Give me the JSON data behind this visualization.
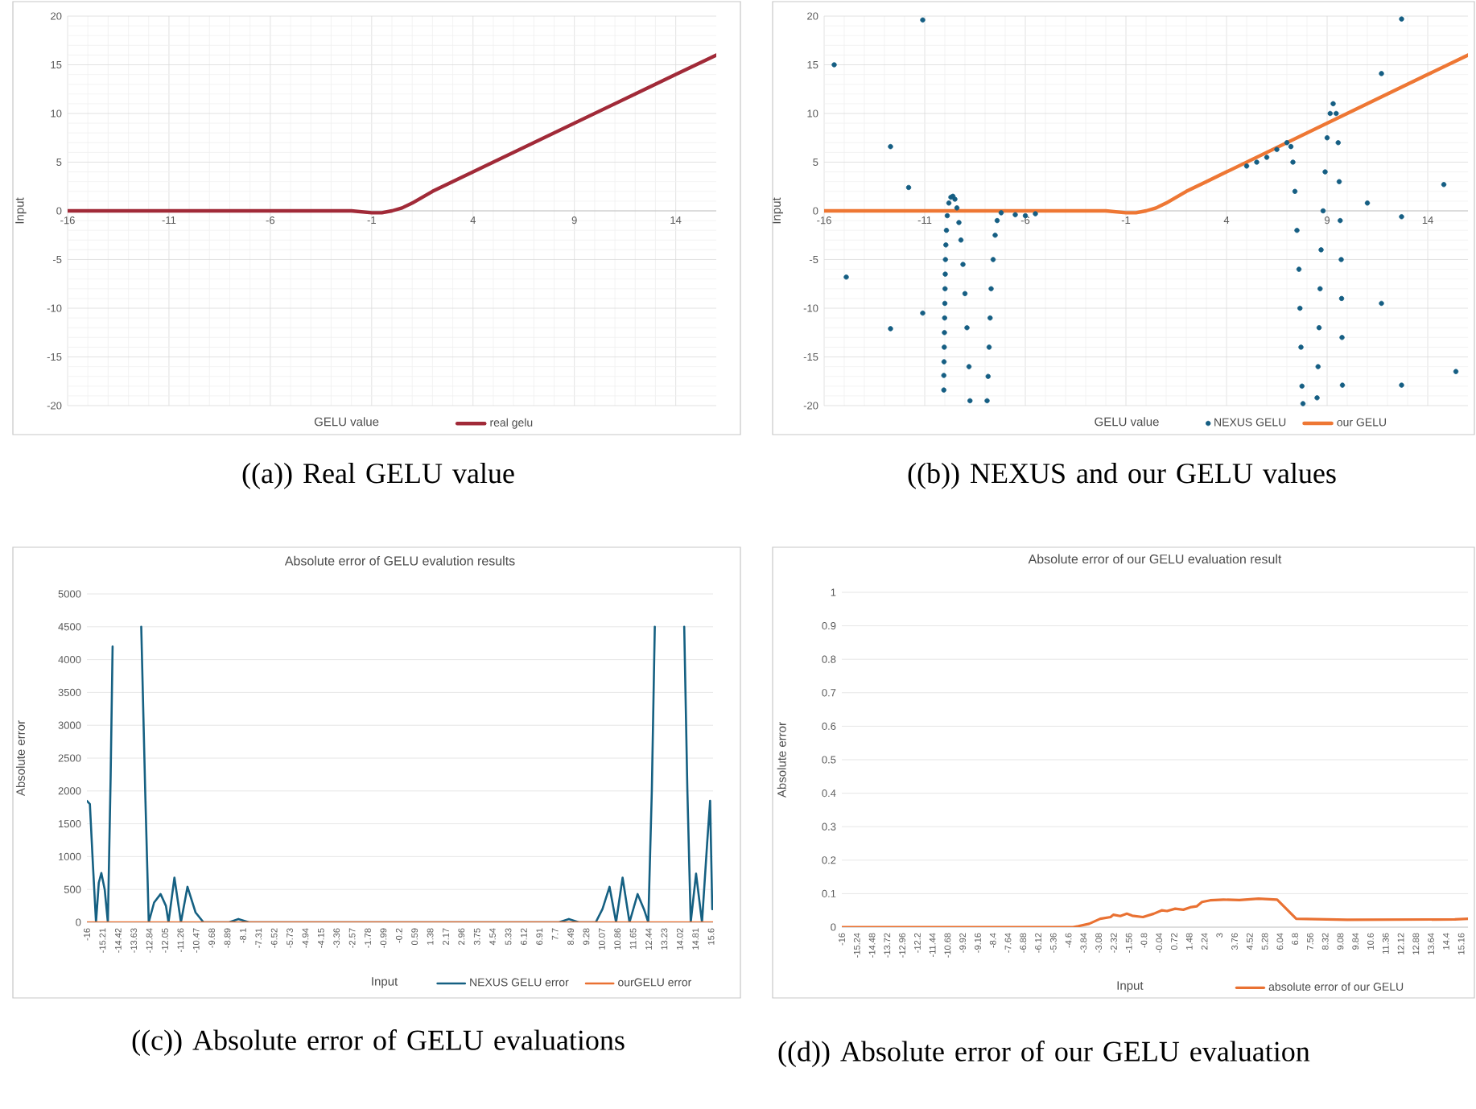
{
  "chart_data": [
    {
      "type": "line",
      "xlabel": "GELU value",
      "ylabel": "Input",
      "annotations": [
        "((a)) Real GELU value"
      ],
      "xlim": [
        -16,
        16
      ],
      "ylim": [
        -20,
        20
      ],
      "xticks": [
        -16,
        -11,
        -6,
        -1,
        4,
        9,
        14
      ],
      "yticks": [
        -20,
        -15,
        -10,
        -5,
        0,
        5,
        10,
        15,
        20
      ],
      "grid": true,
      "legend": "bottom",
      "series": [
        {
          "name": "real gelu",
          "color": "#a12a38",
          "x": [
            -16,
            -12,
            -8,
            -4,
            -2,
            -1,
            -0.5,
            0,
            0.5,
            1,
            1.5,
            2,
            3,
            4,
            6,
            8,
            10,
            12,
            14,
            16
          ],
          "values": [
            0,
            0,
            0,
            0,
            0,
            -0.2,
            -0.2,
            0,
            0.3,
            0.8,
            1.4,
            2,
            3,
            4,
            6,
            8,
            10,
            12,
            14,
            16
          ]
        }
      ]
    },
    {
      "type": "scatter",
      "xlabel": "GELU value",
      "ylabel": "Input",
      "annotations": [
        "((b)) NEXUS and our GELU values"
      ],
      "xlim": [
        -16,
        16
      ],
      "ylim": [
        -20,
        20
      ],
      "xticks": [
        -16,
        -11,
        -6,
        -1,
        4,
        9,
        14
      ],
      "yticks": [
        -20,
        -15,
        -10,
        -5,
        0,
        5,
        10,
        15,
        20
      ],
      "grid": true,
      "legend": "bottom",
      "series": [
        {
          "name": "NEXUS GELU",
          "color": "#155e83",
          "marker": "circle",
          "x": [
            -15.5,
            -14.9,
            -12.7,
            -12.7,
            -11.8,
            -11.1,
            -11.1,
            -10.05,
            -10.05,
            -10.04,
            -10.03,
            -10.02,
            -10.01,
            -10,
            -9.99,
            -9.98,
            -9.97,
            -9.95,
            -9.92,
            -9.88,
            -9.8,
            -9.7,
            -9.6,
            -9.5,
            -9.4,
            -9.3,
            -9.2,
            -9.1,
            -9,
            -8.9,
            -8.8,
            -8.75,
            -7.9,
            -7.85,
            -7.8,
            -7.75,
            -7.7,
            -7.6,
            -7.5,
            -7.4,
            -7.2,
            -6.5,
            -6,
            -5.5,
            5,
            5.5,
            6,
            6.5,
            7,
            7.2,
            7.3,
            7.4,
            7.5,
            7.6,
            7.65,
            7.7,
            7.75,
            7.8,
            8.5,
            8.55,
            8.6,
            8.65,
            8.7,
            8.8,
            8.9,
            9,
            9.15,
            9.3,
            9.45,
            9.55,
            9.6,
            9.65,
            9.7,
            9.72,
            9.74,
            9.76,
            11,
            11.7,
            11.7,
            12.7,
            12.7,
            12.7,
            14.8,
            15.4
          ],
          "values": [
            15,
            -6.8,
            6.6,
            -12.1,
            2.4,
            19.6,
            -10.5,
            -18.4,
            -16.9,
            -15.5,
            -14,
            -12.5,
            -11,
            -9.5,
            -8,
            -6.5,
            -5,
            -3.5,
            -2,
            -0.5,
            0.8,
            1.4,
            1.5,
            1.2,
            0.3,
            -1.2,
            -3,
            -5.5,
            -8.5,
            -12,
            -16,
            -19.5,
            -19.5,
            -17,
            -14,
            -11,
            -8,
            -5,
            -2.5,
            -1,
            -0.2,
            -0.4,
            -0.5,
            -0.3,
            4.6,
            5,
            5.5,
            6.3,
            7,
            6.6,
            5,
            2,
            -2,
            -6,
            -10,
            -14,
            -18,
            -19.8,
            -19.2,
            -16,
            -12,
            -8,
            -4,
            0,
            4,
            7.5,
            10,
            11,
            10,
            7,
            3,
            -1,
            -5,
            -9,
            -13,
            -17.9,
            0.8,
            14.1,
            -9.5,
            19.7,
            -0.6,
            -17.9,
            2.7,
            -16.5
          ]
        },
        {
          "name": "our GELU",
          "type": "line",
          "color": "#ee7734",
          "x": [
            -16,
            -12,
            -8,
            -4,
            -2,
            -1,
            -0.5,
            0,
            0.5,
            1,
            1.5,
            2,
            3,
            4,
            6,
            8,
            10,
            12,
            14,
            16
          ],
          "values": [
            0,
            0,
            0,
            0,
            0,
            -0.2,
            -0.2,
            0,
            0.3,
            0.8,
            1.4,
            2,
            3,
            4,
            6,
            8,
            10,
            12,
            14,
            16
          ]
        }
      ]
    },
    {
      "type": "line",
      "title": "Absolute error of GELU evalution results",
      "xlabel": "Input",
      "ylabel": "Absolute error",
      "annotations": [
        "((c)) Absolute error of GELU evaluations"
      ],
      "xlim": [
        -16,
        15.7
      ],
      "ylim": [
        0,
        5000
      ],
      "xticks": [
        -16,
        -15.21,
        -14.42,
        -13.63,
        -12.84,
        -12.05,
        -11.26,
        -10.47,
        -9.68,
        -8.89,
        -8.1,
        -7.31,
        -6.52,
        -5.73,
        -4.94,
        -4.15,
        -3.36,
        -2.57,
        -1.78,
        -0.99,
        -0.2,
        0.59,
        1.38,
        2.17,
        2.96,
        3.75,
        4.54,
        5.33,
        6.12,
        6.91,
        7.7,
        8.49,
        9.28,
        10.07,
        10.86,
        11.65,
        12.44,
        13.23,
        14.02,
        14.81,
        15.6
      ],
      "yticks": [
        0,
        500,
        1000,
        1500,
        2000,
        2500,
        3000,
        3500,
        4000,
        4500,
        5000
      ],
      "grid": "y",
      "legend": "bottom",
      "series": [
        {
          "name": "NEXUS GELU error",
          "color": "#156082",
          "x": [
            -16,
            -15.85,
            -15.7,
            -15.54,
            -15.4,
            -15.27,
            -15.1,
            -14.94,
            -14.8,
            -14.7,
            -14,
            -13.25,
            -13.05,
            -12.87,
            -12.6,
            -12.27,
            -12,
            -11.87,
            -11.57,
            -11.24,
            -10.91,
            -10.5,
            -10.1,
            -8.8,
            -8.33,
            -7.8,
            7.9,
            8.4,
            8.9,
            9.76,
            10.1,
            10.46,
            10.79,
            11.12,
            11.47,
            11.88,
            12.2,
            12.42,
            12.6,
            12.75,
            13.5,
            14.24,
            14.4,
            14.57,
            14.84,
            15.14,
            15.4,
            15.55,
            15.66
          ],
          "values": [
            1850,
            1800,
            900,
            0,
            600,
            750,
            500,
            0,
            2200,
            4200,
            null,
            4500,
            2000,
            0,
            300,
            430,
            250,
            0,
            680,
            0,
            540,
            150,
            0,
            0,
            50,
            0,
            0,
            50,
            0,
            0,
            200,
            540,
            0,
            680,
            0,
            430,
            200,
            0,
            2000,
            4500,
            null,
            4500,
            2000,
            0,
            740,
            0,
            1200,
            1850,
            200
          ]
        },
        {
          "name": "ourGELU error",
          "color": "#e97132",
          "x": [
            -16,
            -8,
            0,
            8,
            15.7
          ],
          "values": [
            0,
            0,
            0,
            0,
            0
          ]
        }
      ]
    },
    {
      "type": "line",
      "title": "Absolute error of our GELU evaluation result",
      "xlabel": "Input",
      "ylabel": "Absolute error",
      "annotations": [
        "((d)) Absolute error of our GELU evaluation"
      ],
      "xlim": [
        -16,
        15.5
      ],
      "ylim": [
        0,
        1
      ],
      "xticks": [
        -16,
        -15.24,
        -14.48,
        -13.72,
        -12.96,
        -12.2,
        -11.44,
        -10.68,
        -9.92,
        -9.16,
        -8.4,
        -7.64,
        -6.88,
        -6.12,
        -5.36,
        -4.6,
        -3.84,
        -3.08,
        -2.32,
        -1.56,
        -0.8,
        -0.04,
        0.72,
        1.48,
        2.24,
        3,
        3.76,
        4.52,
        5.28,
        6.04,
        6.8,
        7.56,
        8.32,
        9.08,
        9.84,
        10.6,
        11.36,
        12.12,
        12.88,
        13.64,
        14.4,
        15.16
      ],
      "yticks": [
        0,
        0.1,
        0.2,
        0.3,
        0.4,
        0.5,
        0.6,
        0.7,
        0.8,
        0.9,
        1
      ],
      "grid": "y",
      "legend": "bottom",
      "series": [
        {
          "name": "absolute error of our GELU",
          "color": "#e97132",
          "x": [
            -16,
            -4.37,
            -4.1,
            -3.56,
            -3,
            -2.48,
            -2.34,
            -1.99,
            -1.66,
            -1.39,
            -0.85,
            -0.31,
            0.09,
            0.36,
            0.77,
            1.18,
            1.58,
            1.85,
            2.12,
            2.53,
            3.2,
            4,
            4.96,
            5.9,
            6.86,
            9.43,
            14.84,
            15.5
          ],
          "values": [
            0,
            0,
            0.003,
            0.01,
            0.025,
            0.03,
            0.037,
            0.033,
            0.04,
            0.034,
            0.03,
            0.04,
            0.05,
            0.048,
            0.055,
            0.052,
            0.06,
            0.062,
            0.075,
            0.08,
            0.082,
            0.081,
            0.085,
            0.082,
            0.025,
            0.022,
            0.023,
            0.025
          ]
        }
      ]
    }
  ]
}
